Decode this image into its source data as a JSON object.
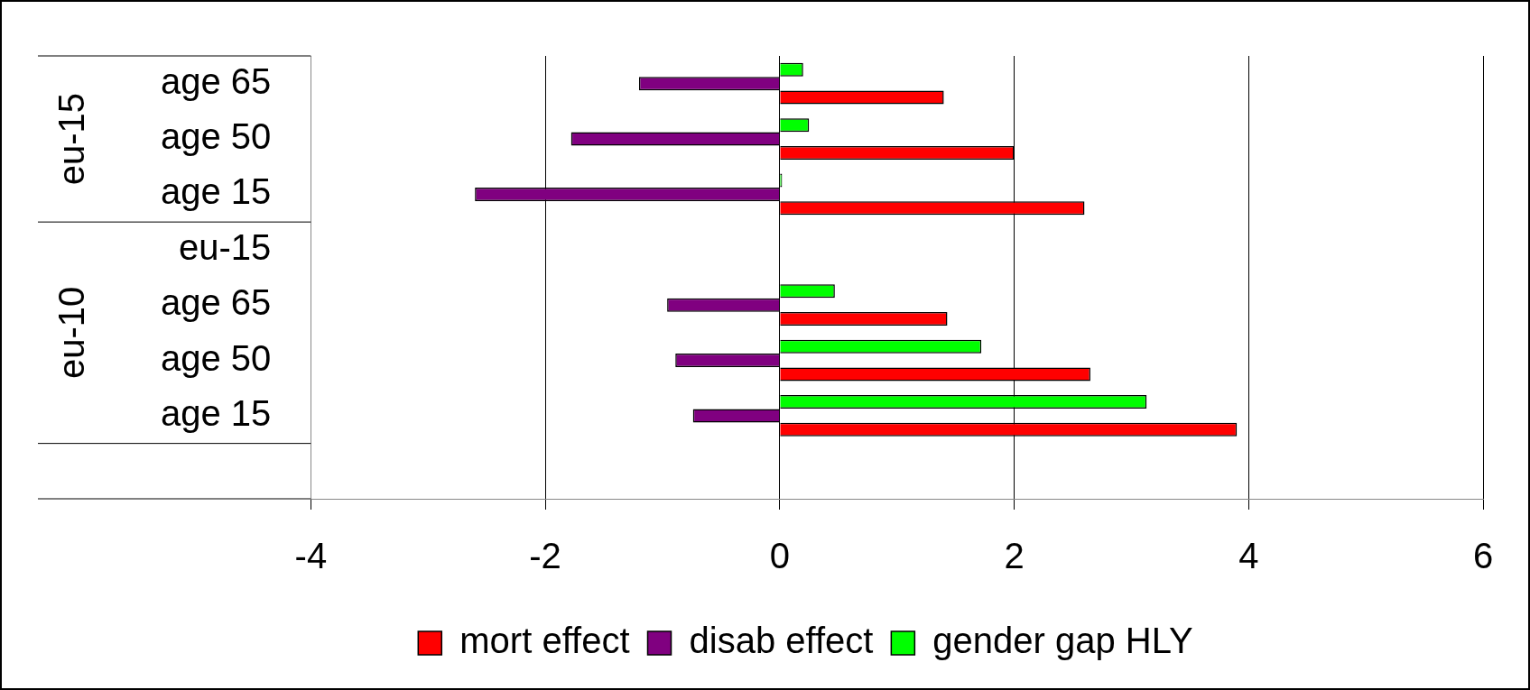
{
  "chart_data": {
    "type": "bar",
    "orientation": "horizontal",
    "categories": [
      "age 65",
      "age 50",
      "age 15",
      "eu-15",
      "age 65",
      "age 50",
      "age 15",
      null
    ],
    "series": [
      {
        "name": "mort effect",
        "color": "#ff0000",
        "values": [
          1.4,
          2.0,
          2.6,
          null,
          1.43,
          2.65,
          3.9,
          null
        ]
      },
      {
        "name": "disab effect",
        "color": "#800080",
        "values": [
          -1.2,
          -1.78,
          -2.6,
          null,
          -0.96,
          -0.89,
          -0.74,
          null
        ]
      },
      {
        "name": "gender gap HLY",
        "color": "#00ff00",
        "values": [
          0.2,
          0.25,
          0.02,
          null,
          0.47,
          1.72,
          3.13,
          null
        ]
      }
    ],
    "xlim": [
      -4,
      6
    ],
    "xticks": [
      -4,
      -2,
      0,
      2,
      4,
      6
    ],
    "grid": "x",
    "legend": "bottom",
    "annotations": [
      "eu-15",
      "eu-10"
    ]
  }
}
